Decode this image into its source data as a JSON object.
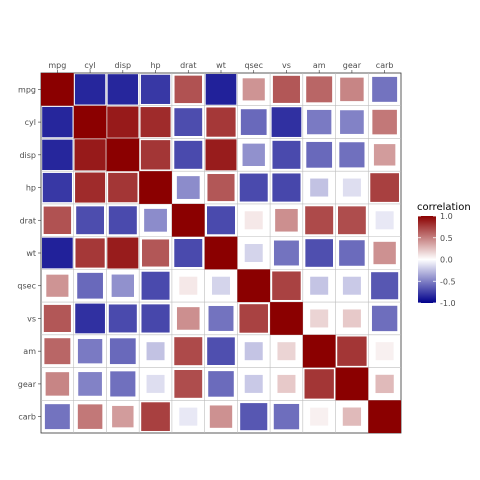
{
  "chart_data": {
    "type": "heatmap",
    "variables": [
      "mpg",
      "cyl",
      "disp",
      "hp",
      "drat",
      "wt",
      "qsec",
      "vs",
      "am",
      "gear",
      "carb"
    ],
    "matrix": [
      [
        1.0,
        -0.85,
        -0.85,
        -0.78,
        0.68,
        -0.87,
        0.42,
        0.66,
        0.6,
        0.48,
        -0.55
      ],
      [
        -0.85,
        1.0,
        0.9,
        0.83,
        -0.7,
        0.78,
        -0.59,
        -0.81,
        -0.52,
        -0.49,
        0.53
      ],
      [
        -0.85,
        0.9,
        1.0,
        0.79,
        -0.71,
        0.89,
        -0.43,
        -0.71,
        -0.59,
        -0.56,
        0.39
      ],
      [
        -0.78,
        0.83,
        0.79,
        1.0,
        -0.45,
        0.66,
        -0.71,
        -0.72,
        -0.24,
        -0.13,
        0.75
      ],
      [
        0.68,
        -0.7,
        -0.71,
        -0.45,
        1.0,
        -0.71,
        0.09,
        0.44,
        0.71,
        0.7,
        -0.09
      ],
      [
        -0.87,
        0.78,
        0.89,
        0.66,
        -0.71,
        1.0,
        -0.17,
        -0.55,
        -0.69,
        -0.58,
        0.43
      ],
      [
        0.42,
        -0.59,
        -0.43,
        -0.71,
        0.09,
        -0.17,
        1.0,
        0.74,
        -0.23,
        -0.21,
        -0.66
      ],
      [
        0.66,
        -0.81,
        -0.71,
        -0.72,
        0.44,
        -0.55,
        0.74,
        1.0,
        0.17,
        0.21,
        -0.57
      ],
      [
        0.6,
        -0.52,
        -0.59,
        -0.24,
        0.71,
        -0.69,
        -0.23,
        0.17,
        1.0,
        0.79,
        0.06
      ],
      [
        0.48,
        -0.49,
        -0.56,
        -0.13,
        0.7,
        -0.58,
        -0.21,
        0.21,
        0.79,
        1.0,
        0.27
      ],
      [
        -0.55,
        0.53,
        0.39,
        0.75,
        -0.09,
        0.43,
        -0.66,
        -0.57,
        0.06,
        0.27,
        1.0
      ]
    ],
    "color_scale": {
      "low": "#00008b",
      "mid": "#ffffff",
      "high": "#8b0000",
      "limits": [
        -1,
        1
      ]
    },
    "legend": {
      "title": "correlation",
      "ticks": [
        1.0,
        0.5,
        0.0,
        -0.5,
        -1.0
      ],
      "tick_labels": [
        "1.0",
        "0.5",
        "0.0",
        "-0.5",
        "-1.0"
      ],
      "placement": "right"
    },
    "x_axis_position": "top",
    "grid": true
  }
}
